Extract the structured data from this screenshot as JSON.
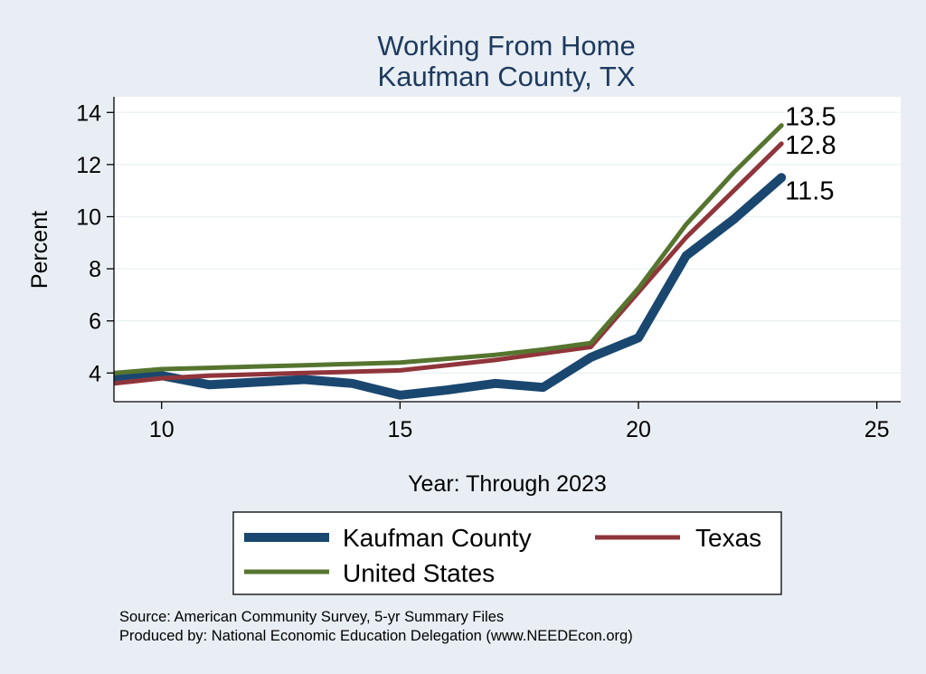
{
  "chart_data": {
    "type": "line",
    "title": "Working From Home",
    "subtitle": "Kaufman County, TX",
    "xlabel": "Year: Through 2023",
    "ylabel": "Percent",
    "xlim": [
      9,
      25.5
    ],
    "ylim": [
      2.9,
      14.6
    ],
    "x_ticks": [
      10,
      15,
      20,
      25
    ],
    "y_ticks": [
      4,
      6,
      8,
      10,
      12,
      14
    ],
    "grid": true,
    "legend_position": "bottom",
    "x": [
      9,
      10,
      11,
      12,
      13,
      14,
      15,
      16,
      17,
      18,
      19,
      20,
      21,
      22,
      23
    ],
    "series": [
      {
        "name": "Kaufman County",
        "color": "#1a476f",
        "width": 10,
        "values": [
          3.85,
          3.9,
          3.55,
          3.65,
          3.75,
          3.6,
          3.15,
          3.35,
          3.6,
          3.45,
          4.6,
          5.35,
          8.5,
          9.9,
          11.5
        ],
        "end_label": "11.5"
      },
      {
        "name": "Texas",
        "color": "#90353b",
        "width": 5,
        "values": [
          3.6,
          3.8,
          3.9,
          3.95,
          4.0,
          4.05,
          4.1,
          4.3,
          4.5,
          4.75,
          5.0,
          7.1,
          9.2,
          11.0,
          12.8
        ],
        "end_label": "12.8"
      },
      {
        "name": "United States",
        "color": "#55752f",
        "width": 5,
        "values": [
          4.0,
          4.15,
          4.2,
          4.25,
          4.3,
          4.35,
          4.4,
          4.55,
          4.7,
          4.9,
          5.15,
          7.25,
          9.7,
          11.7,
          13.5
        ],
        "end_label": "13.5"
      }
    ],
    "source_lines": [
      "Source: American Community Survey, 5-yr Summary Files",
      "Produced by: National Economic Education Delegation (www.NEEDEcon.org)"
    ]
  }
}
